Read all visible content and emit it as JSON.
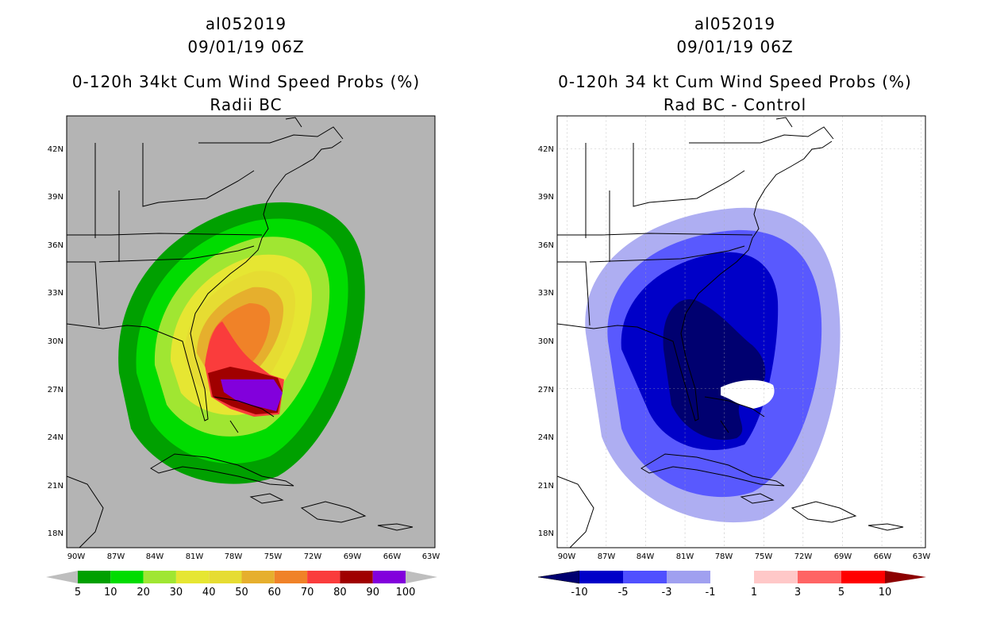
{
  "left": {
    "storm_id": "al052019",
    "datetime": "09/01/19 06Z",
    "title": "0-120h 34kt Cum Wind Speed Probs (%)",
    "subtitle": "Radii BC",
    "lat_labels": [
      "42N",
      "39N",
      "36N",
      "33N",
      "30N",
      "27N",
      "24N",
      "21N",
      "18N"
    ],
    "lon_labels": [
      "90W",
      "87W",
      "84W",
      "81W",
      "78W",
      "75W",
      "72W",
      "69W",
      "66W",
      "63W"
    ],
    "colorbar": {
      "labels": [
        "5",
        "10",
        "20",
        "30",
        "40",
        "50",
        "60",
        "70",
        "80",
        "90",
        "100"
      ],
      "colors": [
        "#00a000",
        "#00dc00",
        "#a0e632",
        "#e6e632",
        "#e6dc32",
        "#e6af2d",
        "#f08228",
        "#fa3c3c",
        "#a00000",
        "#8200dc"
      ],
      "end_color": "#bebebe"
    }
  },
  "right": {
    "storm_id": "al052019",
    "datetime": "09/01/19 06Z",
    "title": "0-120h 34 kt Cum Wind Speed Probs (%)",
    "subtitle": "Rad BC - Control",
    "lat_labels": [
      "42N",
      "39N",
      "36N",
      "33N",
      "30N",
      "27N",
      "24N",
      "21N",
      "18N"
    ],
    "lon_labels": [
      "90W",
      "87W",
      "84W",
      "81W",
      "78W",
      "75W",
      "72W",
      "69W",
      "66W",
      "63W"
    ],
    "colorbar": {
      "labels": [
        "-10",
        "-5",
        "-3",
        "-1",
        "1",
        "3",
        "5",
        "10"
      ],
      "colors": [
        "#0000c8",
        "#5050ff",
        "#a0a0f0",
        "#ffffff",
        "#ffc8c8",
        "#ff6464",
        "#ff0000"
      ],
      "low_color": "#000070",
      "high_color": "#8c0000"
    }
  }
}
